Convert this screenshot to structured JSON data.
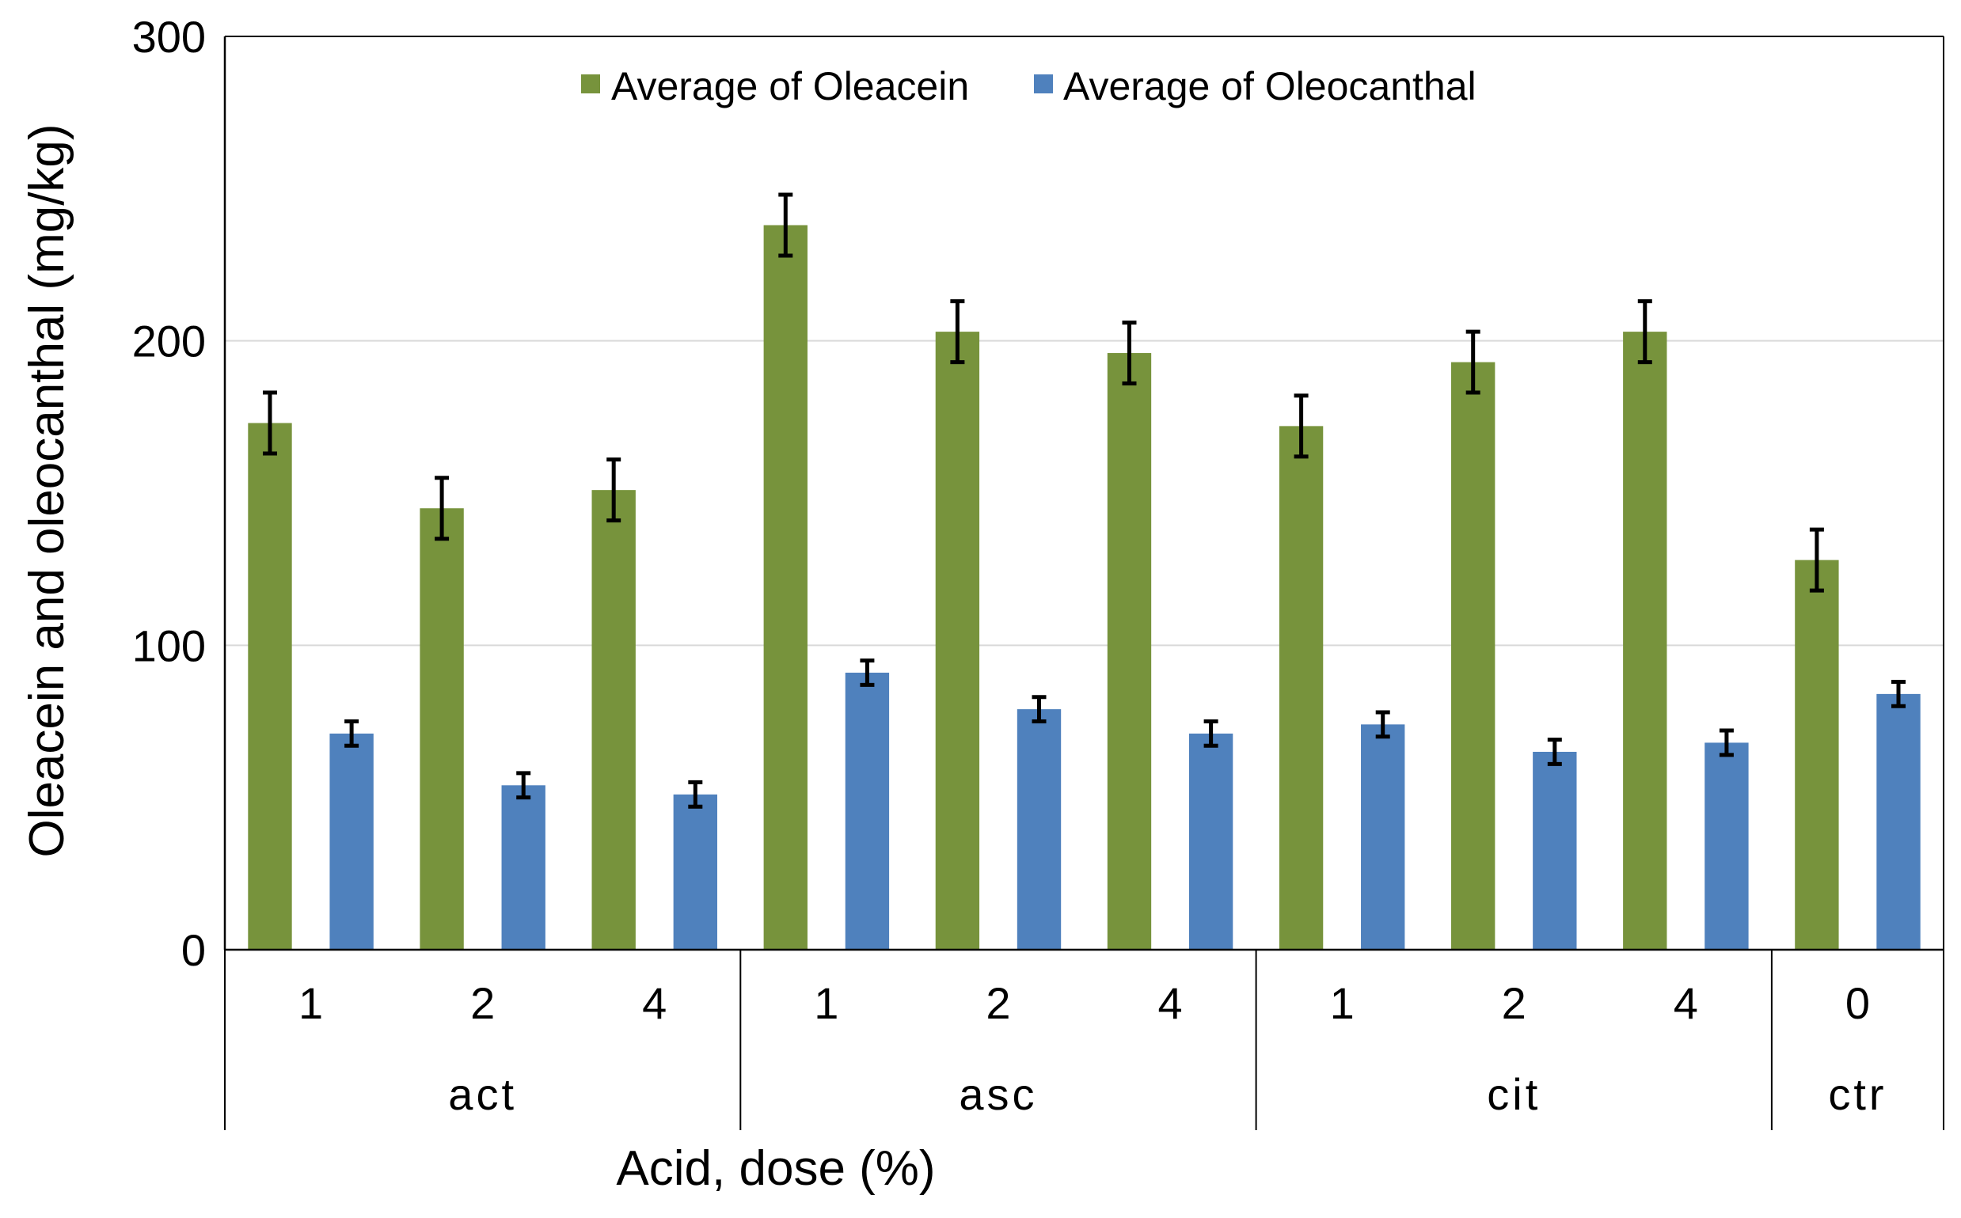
{
  "chart_data": {
    "type": "bar",
    "title": "",
    "xlabel": "Acid, dose (%)",
    "ylabel": "Oleacein and oleocanthal (mg/kg)",
    "ylim": [
      0,
      300
    ],
    "yticks": [
      "0",
      "100",
      "200",
      "300"
    ],
    "grid": "horizontal",
    "legend_position": "top",
    "groups": [
      {
        "name": "act",
        "doses": [
          "1",
          "2",
          "4"
        ]
      },
      {
        "name": "asc",
        "doses": [
          "1",
          "2",
          "4"
        ]
      },
      {
        "name": "cit",
        "doses": [
          "1",
          "2",
          "4"
        ]
      },
      {
        "name": "ctr",
        "doses": [
          "0"
        ]
      }
    ],
    "series": [
      {
        "name": "Average of Oleacein",
        "color": "#77933c",
        "values": [
          173,
          145,
          151,
          238,
          203,
          196,
          172,
          193,
          203,
          128
        ],
        "errors": [
          10,
          10,
          10,
          10,
          10,
          10,
          10,
          10,
          10,
          10
        ]
      },
      {
        "name": "Average of Oleocanthal",
        "color": "#4f81bd",
        "values": [
          71,
          54,
          51,
          91,
          79,
          71,
          74,
          65,
          68,
          84
        ],
        "errors": [
          4,
          4,
          4,
          4,
          4,
          4,
          4,
          4,
          4,
          4
        ]
      }
    ]
  }
}
